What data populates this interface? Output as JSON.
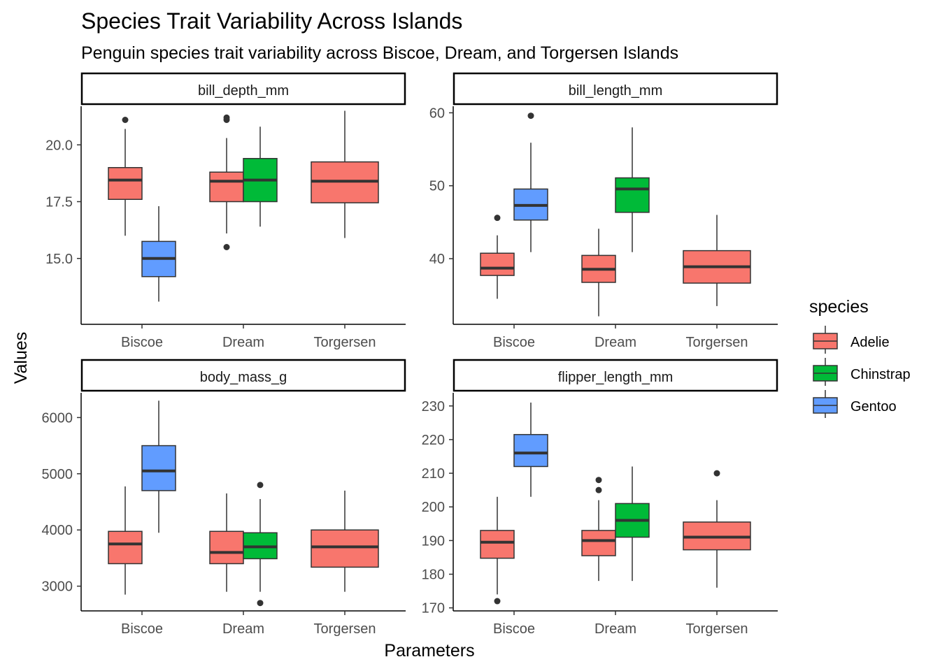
{
  "title": "Species Trait Variability Across Islands",
  "subtitle": "Penguin species trait variability across Biscoe, Dream, and Torgersen Islands",
  "xlabel": "Parameters",
  "ylabel": "Values",
  "legend": {
    "title": "species",
    "position": "right",
    "items": [
      {
        "label": "Adelie",
        "color": "#F8766D"
      },
      {
        "label": "Chinstrap",
        "color": "#00BA38"
      },
      {
        "label": "Gentoo",
        "color": "#619CFF"
      }
    ]
  },
  "chart_data": {
    "type": "boxplot",
    "facets": [
      "bill_depth_mm",
      "bill_length_mm",
      "body_mass_g",
      "flipper_length_mm"
    ],
    "categories": [
      "Biscoe",
      "Dream",
      "Torgersen"
    ],
    "species": [
      "Adelie",
      "Chinstrap",
      "Gentoo"
    ],
    "panels": [
      {
        "facet": "bill_depth_mm",
        "ylim": [
          12.1,
          21.7
        ],
        "yticks": [
          15.0,
          17.5,
          20.0
        ],
        "ytick_labels": [
          "15.0",
          "17.5",
          "20.0"
        ],
        "boxes": [
          {
            "island": "Biscoe",
            "species": "Adelie",
            "min": 16.0,
            "q1": 17.6,
            "median": 18.45,
            "q3": 19.0,
            "max": 20.7,
            "outliers": [
              21.1
            ]
          },
          {
            "island": "Biscoe",
            "species": "Gentoo",
            "min": 13.1,
            "q1": 14.2,
            "median": 15.0,
            "q3": 15.75,
            "max": 17.3,
            "outliers": []
          },
          {
            "island": "Dream",
            "species": "Adelie",
            "min": 16.1,
            "q1": 17.5,
            "median": 18.4,
            "q3": 18.8,
            "max": 20.3,
            "outliers": [
              21.1,
              21.2,
              15.5
            ]
          },
          {
            "island": "Dream",
            "species": "Chinstrap",
            "min": 16.4,
            "q1": 17.5,
            "median": 18.45,
            "q3": 19.4,
            "max": 20.8,
            "outliers": []
          },
          {
            "island": "Torgersen",
            "species": "Adelie",
            "min": 15.9,
            "q1": 17.45,
            "median": 18.4,
            "q3": 19.25,
            "max": 21.5,
            "outliers": []
          }
        ]
      },
      {
        "facet": "bill_length_mm",
        "ylim": [
          31.0,
          60.9
        ],
        "yticks": [
          40,
          50,
          60
        ],
        "ytick_labels": [
          "40",
          "50",
          "60"
        ],
        "boxes": [
          {
            "island": "Biscoe",
            "species": "Adelie",
            "min": 34.5,
            "q1": 37.7,
            "median": 38.7,
            "q3": 40.75,
            "max": 43.2,
            "outliers": [
              45.6
            ]
          },
          {
            "island": "Biscoe",
            "species": "Gentoo",
            "min": 40.9,
            "q1": 45.3,
            "median": 47.3,
            "q3": 49.55,
            "max": 55.9,
            "outliers": [
              59.6
            ]
          },
          {
            "island": "Dream",
            "species": "Adelie",
            "min": 32.1,
            "q1": 36.75,
            "median": 38.55,
            "q3": 40.45,
            "max": 44.1,
            "outliers": []
          },
          {
            "island": "Dream",
            "species": "Chinstrap",
            "min": 40.9,
            "q1": 46.35,
            "median": 49.55,
            "q3": 51.08,
            "max": 58.0,
            "outliers": []
          },
          {
            "island": "Torgersen",
            "species": "Adelie",
            "min": 33.5,
            "q1": 36.65,
            "median": 38.9,
            "q3": 41.1,
            "max": 46.0,
            "outliers": []
          }
        ]
      },
      {
        "facet": "body_mass_g",
        "ylim": [
          2560,
          6440
        ],
        "yticks": [
          3000,
          4000,
          5000,
          6000
        ],
        "ytick_labels": [
          "3000",
          "4000",
          "5000",
          "6000"
        ],
        "boxes": [
          {
            "island": "Biscoe",
            "species": "Adelie",
            "min": 2850,
            "q1": 3400,
            "median": 3750,
            "q3": 3975,
            "max": 4775,
            "outliers": []
          },
          {
            "island": "Biscoe",
            "species": "Gentoo",
            "min": 3950,
            "q1": 4700,
            "median": 5050,
            "q3": 5500,
            "max": 6300,
            "outliers": []
          },
          {
            "island": "Dream",
            "species": "Adelie",
            "min": 2900,
            "q1": 3400,
            "median": 3600,
            "q3": 3975,
            "max": 4650,
            "outliers": []
          },
          {
            "island": "Dream",
            "species": "Chinstrap",
            "min": 2900,
            "q1": 3488,
            "median": 3700,
            "q3": 3950,
            "max": 4550,
            "outliers": [
              4800,
              2700
            ]
          },
          {
            "island": "Torgersen",
            "species": "Adelie",
            "min": 2900,
            "q1": 3338,
            "median": 3700,
            "q3": 4000,
            "max": 4700,
            "outliers": []
          }
        ]
      },
      {
        "facet": "flipper_length_mm",
        "ylim": [
          169.1,
          233.9
        ],
        "yticks": [
          170,
          180,
          190,
          200,
          210,
          220,
          230
        ],
        "ytick_labels": [
          "170",
          "180",
          "190",
          "200",
          "210",
          "220",
          "230"
        ],
        "boxes": [
          {
            "island": "Biscoe",
            "species": "Adelie",
            "min": 174,
            "q1": 184.75,
            "median": 189.5,
            "q3": 193,
            "max": 203,
            "outliers": [
              172
            ]
          },
          {
            "island": "Biscoe",
            "species": "Gentoo",
            "min": 203,
            "q1": 212,
            "median": 216,
            "q3": 221.5,
            "max": 231,
            "outliers": []
          },
          {
            "island": "Dream",
            "species": "Adelie",
            "min": 178,
            "q1": 185.5,
            "median": 190,
            "q3": 193,
            "max": 202,
            "outliers": [
              208,
              205
            ]
          },
          {
            "island": "Dream",
            "species": "Chinstrap",
            "min": 178,
            "q1": 191,
            "median": 196,
            "q3": 201,
            "max": 212,
            "outliers": []
          },
          {
            "island": "Torgersen",
            "species": "Adelie",
            "min": 176,
            "q1": 187.25,
            "median": 191,
            "q3": 195.5,
            "max": 202,
            "outliers": [
              210
            ]
          }
        ]
      }
    ]
  }
}
